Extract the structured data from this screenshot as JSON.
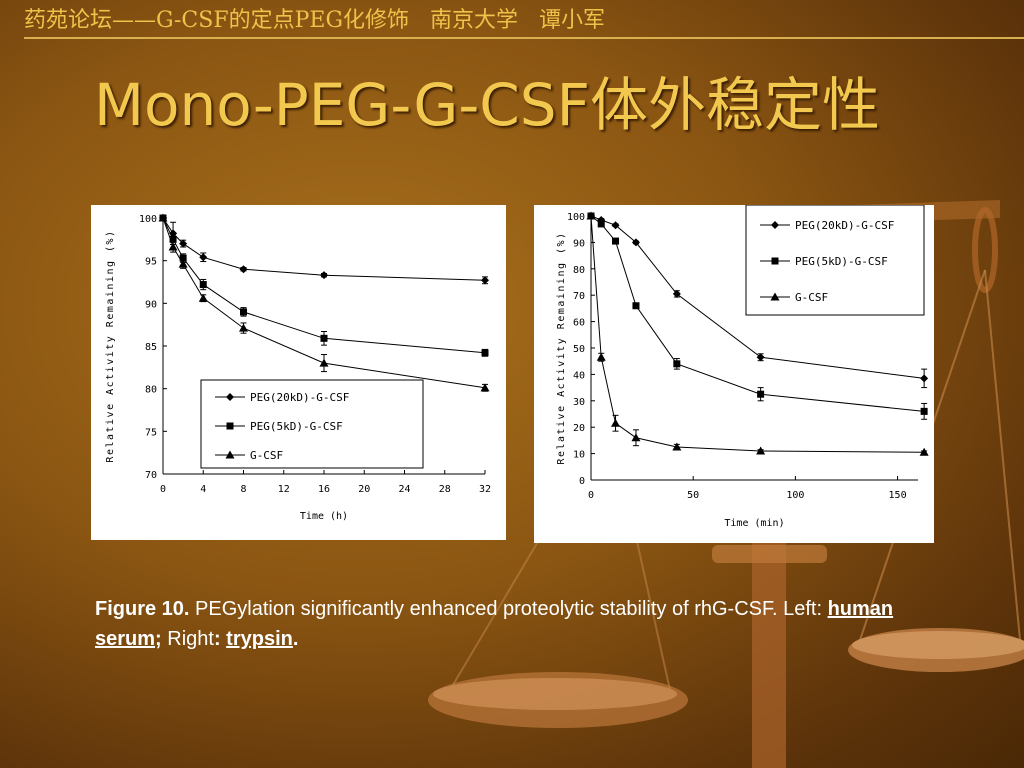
{
  "slide": {
    "header": "药苑论坛——G-CSF的定点PEG化修饰   南京大学   谭小军",
    "title": "Mono-PEG-G-CSF体外稳定性"
  },
  "caption": {
    "fig_label": "Figure 10.",
    "text1": " PEGylation significantly enhanced proteolytic stability of rhG-CSF.  Left: ",
    "left_term": "human serum",
    "sep1": ";",
    "text2": " Right",
    "sep2": ": ",
    "right_term": "trypsin",
    "end": "."
  },
  "chart_data": [
    {
      "type": "line",
      "xlabel": "Time (h)",
      "ylabel": "Relative Activity Remaining (%)",
      "xlim": [
        0,
        32
      ],
      "ylim": [
        70,
        100
      ],
      "xticks": [
        0,
        4,
        8,
        12,
        16,
        20,
        24,
        28,
        32
      ],
      "yticks": [
        70,
        75,
        80,
        85,
        90,
        95,
        100
      ],
      "legend_position": "bottom-right",
      "series": [
        {
          "name": "PEG(20kD)-G-CSF",
          "marker": "diamond",
          "x": [
            0,
            1,
            2,
            4,
            8,
            16,
            32
          ],
          "y": [
            100,
            98.2,
            97.0,
            95.4,
            94.0,
            93.3,
            92.7
          ],
          "err": [
            0,
            1.3,
            0.4,
            0.5,
            0.2,
            0.2,
            0.4
          ]
        },
        {
          "name": "PEG(5kD)-G-CSF",
          "marker": "square",
          "x": [
            0,
            1,
            2,
            4,
            8,
            16,
            32
          ],
          "y": [
            100,
            97.5,
            95.3,
            92.2,
            89.0,
            85.9,
            84.2
          ],
          "err": [
            0,
            0.6,
            0.5,
            0.6,
            0.5,
            0.8,
            0.4
          ]
        },
        {
          "name": "G-CSF",
          "marker": "triangle",
          "x": [
            0,
            1,
            2,
            4,
            8,
            16,
            32
          ],
          "y": [
            100,
            96.6,
            94.6,
            90.6,
            87.1,
            83.0,
            80.1
          ],
          "err": [
            0,
            0.6,
            0.5,
            0.4,
            0.6,
            1.0,
            0.4
          ]
        }
      ]
    },
    {
      "type": "line",
      "xlabel": "Time (min)",
      "ylabel": "Relative Activity Remaining (%)",
      "xlim": [
        0,
        160
      ],
      "ylim": [
        0,
        100
      ],
      "xticks": [
        0,
        50,
        100,
        150
      ],
      "yticks": [
        0,
        10,
        20,
        30,
        40,
        50,
        60,
        70,
        80,
        90,
        100
      ],
      "legend_position": "top-right",
      "series": [
        {
          "name": "PEG(20kD)-G-CSF",
          "marker": "diamond",
          "x": [
            0,
            5,
            12,
            22,
            42,
            83,
            163
          ],
          "y": [
            100,
            98.5,
            96.5,
            90,
            70.5,
            46.5,
            38.5
          ],
          "err": [
            0,
            0.5,
            0.5,
            0.5,
            1.2,
            1.3,
            3.5
          ]
        },
        {
          "name": "PEG(5kD)-G-CSF",
          "marker": "square",
          "x": [
            0,
            5,
            12,
            22,
            42,
            83,
            163
          ],
          "y": [
            100,
            97,
            90.5,
            66,
            44,
            32.5,
            26
          ],
          "err": [
            0,
            0.5,
            0.5,
            0.5,
            2,
            2.5,
            3
          ]
        },
        {
          "name": "G-CSF",
          "marker": "triangle",
          "x": [
            0,
            5,
            12,
            22,
            42,
            83,
            163
          ],
          "y": [
            100,
            46.5,
            21.5,
            16,
            12.5,
            11,
            10.5
          ],
          "err": [
            0,
            1.5,
            3,
            3,
            1,
            0.5,
            0.5
          ]
        }
      ]
    }
  ]
}
